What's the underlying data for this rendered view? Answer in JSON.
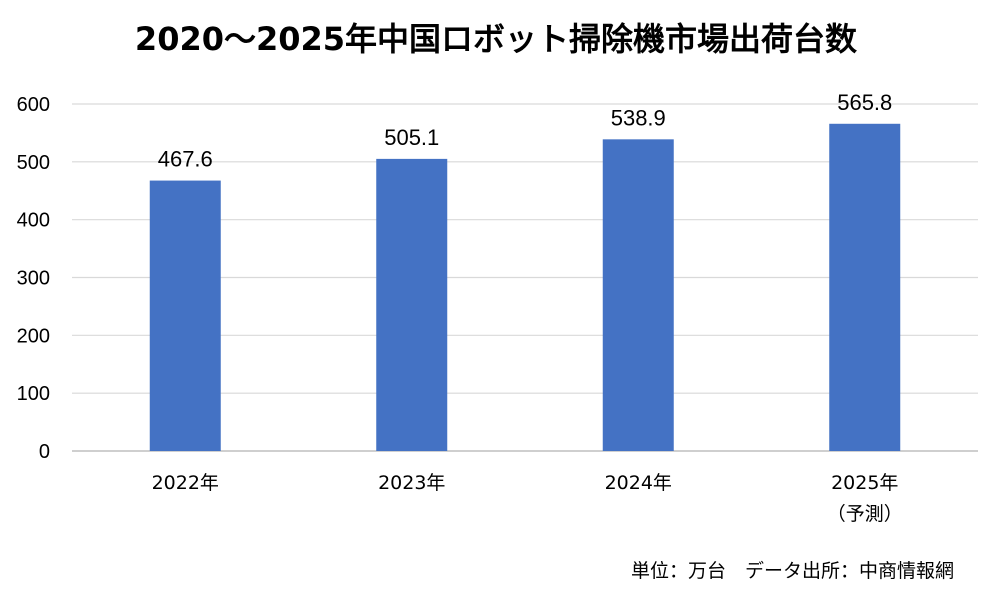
{
  "chart_data": {
    "type": "bar",
    "title": "2020～2025年中国ロボット掃除機市場出荷台数",
    "categories": [
      "2022年",
      "2023年",
      "2024年",
      "2025年"
    ],
    "category_sublabels": [
      "",
      "",
      "",
      "（予測）"
    ],
    "values": [
      467.6,
      505.1,
      538.9,
      565.8
    ],
    "data_labels": [
      "467.6",
      "505.1",
      "538.9",
      "565.8"
    ],
    "yticks": [
      "0",
      "100",
      "200",
      "300",
      "400",
      "500",
      "600"
    ],
    "ylim": [
      0,
      600
    ],
    "grid": true,
    "bar_color": "#4472C4",
    "grid_color": "#D9D9D9",
    "axis_color": "#BFBFBF"
  },
  "footer": {
    "unit": "単位：万台",
    "source": "データ出所：中商情報網"
  }
}
